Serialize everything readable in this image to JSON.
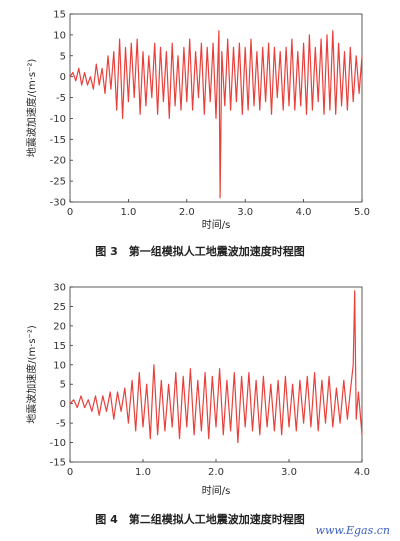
{
  "chart_data": [
    {
      "type": "line",
      "caption": "图 3　第一组模拟人工地震波加速度时程图",
      "xlabel": "时间/s",
      "ylabel": "地震波加速度/(m·s⁻²)",
      "xlim": [
        0,
        5.0
      ],
      "ylim": [
        -30,
        15
      ],
      "xticks": [
        "0",
        "1.0",
        "2.0",
        "3.0",
        "4.0",
        "5.0"
      ],
      "yticks": [
        "15",
        "10",
        "5",
        "0",
        "-5",
        "-10",
        "-15",
        "-20",
        "-25",
        "-30"
      ],
      "color": "#e8413c",
      "series": [
        {
          "x": [
            0.0,
            0.05,
            0.1,
            0.15,
            0.2,
            0.25,
            0.3,
            0.35,
            0.4,
            0.45,
            0.5,
            0.55,
            0.6,
            0.65,
            0.7,
            0.75,
            0.8,
            0.85,
            0.9,
            0.95,
            1.0,
            1.05,
            1.1,
            1.15,
            1.2,
            1.25,
            1.3,
            1.35,
            1.4,
            1.45,
            1.5,
            1.55,
            1.6,
            1.65,
            1.7,
            1.75,
            1.8,
            1.85,
            1.9,
            1.95,
            2.0,
            2.05,
            2.1,
            2.15,
            2.2,
            2.25,
            2.3,
            2.35,
            2.4,
            2.45,
            2.5,
            2.55,
            2.57,
            2.6,
            2.65,
            2.7,
            2.75,
            2.8,
            2.85,
            2.9,
            2.95,
            3.0,
            3.05,
            3.1,
            3.15,
            3.2,
            3.25,
            3.3,
            3.35,
            3.4,
            3.45,
            3.5,
            3.55,
            3.6,
            3.65,
            3.7,
            3.75,
            3.8,
            3.85,
            3.9,
            3.95,
            4.0,
            4.05,
            4.1,
            4.15,
            4.2,
            4.25,
            4.3,
            4.35,
            4.4,
            4.45,
            4.5,
            4.55,
            4.6,
            4.65,
            4.7,
            4.75,
            4.8,
            4.85,
            4.9,
            4.95,
            5.0
          ],
          "values": [
            0,
            1,
            -1,
            2,
            -2,
            1,
            -2,
            0,
            -3,
            3,
            -2,
            2,
            -4,
            5,
            -3,
            6,
            -8,
            9,
            -10,
            7,
            -6,
            8,
            -5,
            9,
            -9,
            6,
            -7,
            5,
            -5,
            8,
            -9,
            7,
            -6,
            6,
            -10,
            8,
            -7,
            5,
            -8,
            7,
            -6,
            9,
            -8,
            6,
            -5,
            8,
            -9,
            7,
            -6,
            8,
            -10,
            11,
            -29,
            6,
            -7,
            9,
            -8,
            7,
            -6,
            8,
            -9,
            7,
            -8,
            9,
            -7,
            6,
            -8,
            7,
            -6,
            8,
            -9,
            7,
            -5,
            6,
            -8,
            7,
            -7,
            9,
            -8,
            6,
            -7,
            8,
            -9,
            10,
            -8,
            7,
            -6,
            9,
            -9,
            10,
            -8,
            11,
            -9,
            8,
            -7,
            6,
            -8,
            7,
            -6,
            5,
            -4,
            5
          ]
        }
      ]
    },
    {
      "type": "line",
      "caption": "图 4　第二组模拟人工地震波加速度时程图",
      "xlabel": "时间/s",
      "ylabel": "地震波加速度/(m·s⁻²)",
      "xlim": [
        0,
        4.0
      ],
      "ylim": [
        -15,
        30
      ],
      "xticks": [
        "0",
        "1.0",
        "2.0",
        "3.0",
        "4.0"
      ],
      "yticks": [
        "30",
        "25",
        "20",
        "15",
        "10",
        "5",
        "0",
        "-5",
        "-10",
        "-15"
      ],
      "color": "#e8413c",
      "series": [
        {
          "x": [
            0.0,
            0.05,
            0.1,
            0.15,
            0.2,
            0.25,
            0.3,
            0.35,
            0.4,
            0.45,
            0.5,
            0.55,
            0.6,
            0.65,
            0.7,
            0.75,
            0.8,
            0.85,
            0.9,
            0.95,
            1.0,
            1.05,
            1.1,
            1.15,
            1.2,
            1.25,
            1.3,
            1.35,
            1.4,
            1.45,
            1.5,
            1.55,
            1.6,
            1.65,
            1.7,
            1.75,
            1.8,
            1.85,
            1.9,
            1.95,
            2.0,
            2.05,
            2.1,
            2.15,
            2.2,
            2.25,
            2.3,
            2.35,
            2.4,
            2.45,
            2.5,
            2.55,
            2.6,
            2.65,
            2.7,
            2.75,
            2.8,
            2.85,
            2.9,
            2.95,
            3.0,
            3.05,
            3.1,
            3.15,
            3.2,
            3.25,
            3.3,
            3.35,
            3.4,
            3.45,
            3.5,
            3.55,
            3.6,
            3.65,
            3.7,
            3.75,
            3.8,
            3.85,
            3.88,
            3.9,
            3.92,
            3.95,
            4.0
          ],
          "values": [
            0,
            1,
            -1,
            2,
            -1,
            1,
            -2,
            2,
            -3,
            2,
            -2,
            3,
            -4,
            3,
            -2,
            4,
            -5,
            6,
            -7,
            8,
            -6,
            5,
            -9,
            10,
            -8,
            6,
            -7,
            5,
            -6,
            8,
            -9,
            7,
            -6,
            9,
            -8,
            6,
            -7,
            8,
            -9,
            7,
            -6,
            9,
            -8,
            6,
            -7,
            8,
            -10,
            7,
            -6,
            8,
            -7,
            6,
            -8,
            7,
            -6,
            5,
            -7,
            6,
            -8,
            7,
            -6,
            5,
            -7,
            6,
            -5,
            7,
            -6,
            8,
            -7,
            6,
            -5,
            7,
            -6,
            4,
            -5,
            6,
            -4,
            5,
            10,
            29,
            -4,
            3,
            -8
          ]
        }
      ]
    },
    {
      "note": "",
      "watermark": "www.Egas.cn"
    }
  ]
}
